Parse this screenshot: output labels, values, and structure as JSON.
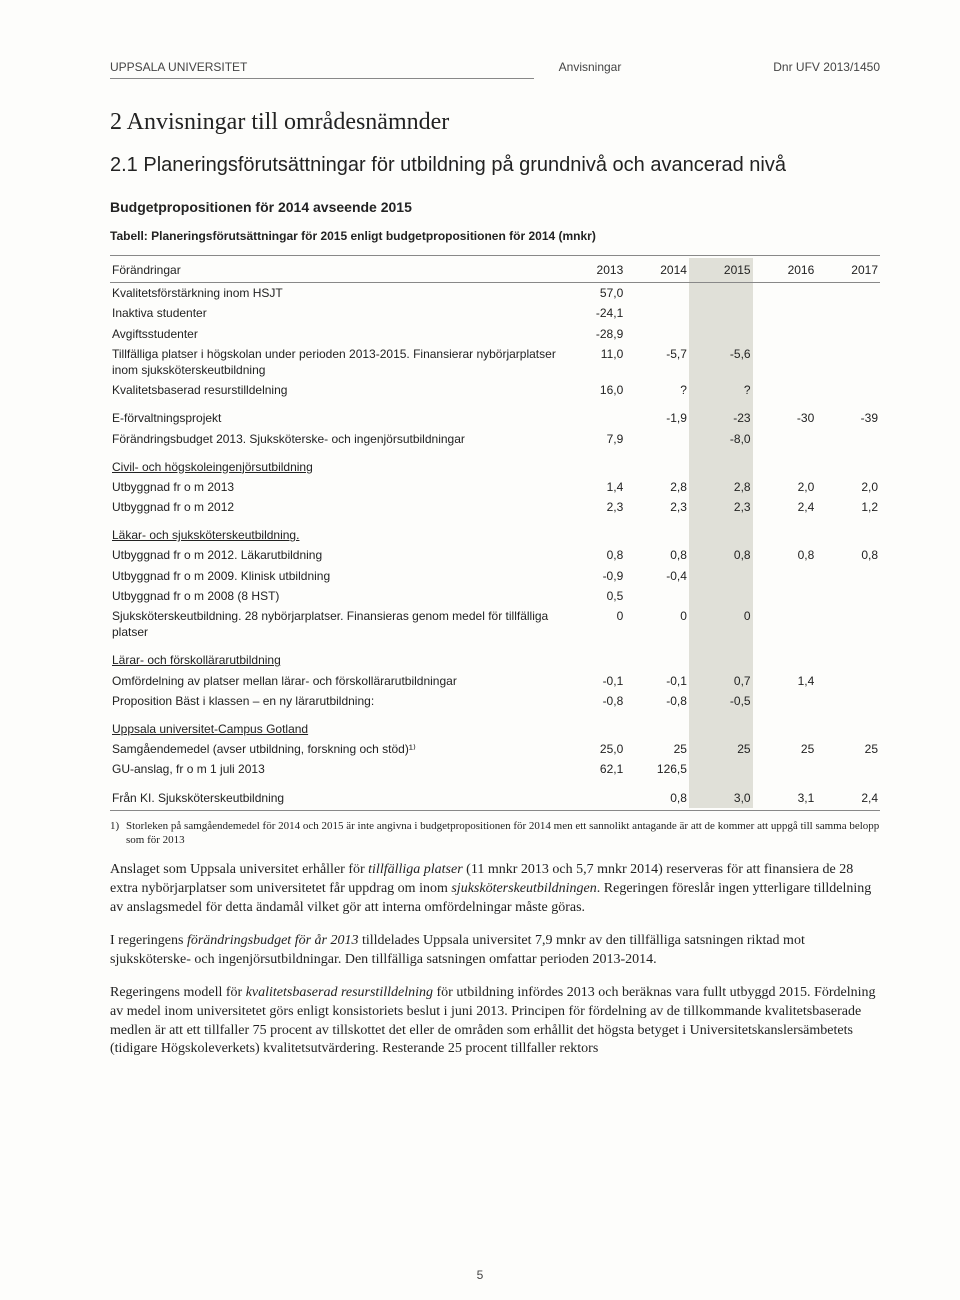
{
  "header": {
    "org": "UPPSALA UNIVERSITET",
    "mid": "Anvisningar",
    "right": "Dnr UFV 2013/1450"
  },
  "section_num_title": "2 Anvisningar till områdesnämnder",
  "sub_num_title": "2.1 Planeringsförutsättningar för utbildning på grundnivå och avancerad nivå",
  "budget_line": "Budgetpropositionen för 2014 avseende 2015",
  "table_caption": "Tabell: Planeringsförutsättningar för 2015 enligt budgetpropositionen för 2014 (mnkr)",
  "table": {
    "head_label": "Förändringar",
    "years": [
      "2013",
      "2014",
      "2015",
      "2016",
      "2017"
    ],
    "rows": [
      {
        "label": "Kvalitetsförstärkning inom HSJT",
        "v": [
          "57,0",
          "",
          "",
          "",
          ""
        ]
      },
      {
        "label": "Inaktiva studenter",
        "v": [
          "-24,1",
          "",
          "",
          "",
          ""
        ]
      },
      {
        "label": "Avgiftsstudenter",
        "v": [
          "-28,9",
          "",
          "",
          "",
          ""
        ]
      },
      {
        "label": "Tillfälliga platser i högskolan under perioden 2013-2015. Finansierar nybörjarplatser inom sjuksköterskeutbildning",
        "v": [
          "11,0",
          "-5,7",
          "-5,6",
          "",
          ""
        ]
      },
      {
        "label": "Kvalitetsbaserad resurstilldelning",
        "v": [
          "16,0",
          "?",
          "?",
          "",
          ""
        ]
      },
      {
        "spacer": true
      },
      {
        "label": "E-förvaltningsprojekt",
        "v": [
          "",
          "-1,9",
          "-23",
          "-30",
          "-39"
        ]
      },
      {
        "label": "Förändringsbudget 2013. Sjuksköterske- och ingenjörsutbildningar",
        "v": [
          "7,9",
          "",
          "-8,0",
          "",
          ""
        ]
      },
      {
        "spacer": true
      },
      {
        "label": "Civil- och högskoleingenjörsutbildning",
        "u": true,
        "v": [
          "",
          "",
          "",
          "",
          ""
        ]
      },
      {
        "label": "Utbyggnad fr o m 2013",
        "v": [
          "1,4",
          "2,8",
          "2,8",
          "2,0",
          "2,0"
        ]
      },
      {
        "label": "Utbyggnad fr o m 2012",
        "v": [
          "2,3",
          "2,3",
          "2,3",
          "2,4",
          "1,2"
        ]
      },
      {
        "spacer": true
      },
      {
        "label": "Läkar- och sjuksköterskeutbildning.",
        "u": true,
        "v": [
          "",
          "",
          "",
          "",
          ""
        ]
      },
      {
        "label": "Utbyggnad fr o m 2012. Läkarutbildning",
        "v": [
          "0,8",
          "0,8",
          "0,8",
          "0,8",
          "0,8"
        ]
      },
      {
        "label": "Utbyggnad fr o m 2009. Klinisk utbildning",
        "v": [
          "-0,9",
          "-0,4",
          "",
          "",
          ""
        ]
      },
      {
        "label": "Utbyggnad fr o m 2008 (8 HST)",
        "v": [
          "0,5",
          "",
          "",
          "",
          ""
        ]
      },
      {
        "label": "Sjuksköterskeutbildning. 28 nybörjarplatser. Finansieras genom medel för tillfälliga platser",
        "v": [
          "0",
          "0",
          "0",
          "",
          ""
        ]
      },
      {
        "spacer": true
      },
      {
        "label": "Lärar- och förskollärarutbildning",
        "u": true,
        "v": [
          "",
          "",
          "",
          "",
          ""
        ]
      },
      {
        "label": "Omfördelning av platser mellan lärar- och förskollärarutbildningar",
        "v": [
          "-0,1",
          "-0,1",
          "0,7",
          "1,4",
          ""
        ]
      },
      {
        "label": "Proposition Bäst i klassen – en ny lärarutbildning:",
        "v": [
          "-0,8",
          "-0,8",
          "-0,5",
          "",
          ""
        ]
      },
      {
        "spacer": true
      },
      {
        "label": "Uppsala universitet-Campus Gotland",
        "u": true,
        "v": [
          "",
          "",
          "",
          "",
          ""
        ]
      },
      {
        "label": "Samgåendemedel (avser utbildning, forskning och stöd)¹⁾",
        "v": [
          "25,0",
          "25",
          "25",
          "25",
          "25"
        ]
      },
      {
        "label": "GU-anslag, fr o m 1 juli 2013",
        "v": [
          "62,1",
          "126,5",
          "",
          "",
          ""
        ]
      },
      {
        "spacer": true
      },
      {
        "label": "Från KI. Sjuksköterskeutbildning",
        "v": [
          "",
          "0,8",
          "3,0",
          "3,1",
          "2,4"
        ]
      }
    ],
    "highlight_col": 2,
    "colors": {
      "highlight_bg": "#e0e0d8",
      "rule": "#888888",
      "text": "#222222",
      "page_bg": "#fdfdfb"
    },
    "font_sizes": {
      "body": 14,
      "table": 12,
      "footnote": 11,
      "h2": 24,
      "h3": 20
    }
  },
  "footnote_num": "1)",
  "footnote_text": "Storleken på samgåendemedel för 2014 och 2015 är inte angivna i budgetpropositionen för 2014 men ett sannolikt antagande är att de kommer att uppgå till samma belopp som för 2013",
  "para1_a": "Anslaget som Uppsala universitet erhåller för ",
  "para1_em1": "tillfälliga platser",
  "para1_b": " (11 mnkr 2013 och 5,7 mnkr 2014) reserveras för att finansiera de 28 extra nybörjarplatser som universitetet får uppdrag om inom ",
  "para1_em2": "sjuksköterskeutbildningen",
  "para1_c": ". Regeringen föreslår ingen ytterligare tilldelning av anslagsmedel för detta ändamål vilket gör att interna omfördelningar måste göras.",
  "para2_a": "I regeringens ",
  "para2_em": "förändringsbudget för år 2013",
  "para2_b": " tilldelades Uppsala universitet 7,9 mnkr av den tillfälliga satsningen riktad mot sjuksköterske- och ingenjörsutbildningar. Den tillfälliga satsningen omfattar perioden 2013-2014.",
  "para3_a": "Regeringens modell för ",
  "para3_em": "kvalitetsbaserad resurstilldelning",
  "para3_b": " för utbildning infördes 2013 och beräknas vara fullt utbyggd 2015. Fördelning av medel inom universitetet görs enligt konsistoriets beslut i juni 2013. Principen för fördelning av de tillkommande kvalitetsbaserade medlen är att ett tillfaller 75 procent av tillskottet det eller de områden som erhållit det högsta betyget i Universitetskanslersämbetets (tidigare Högskoleverkets) kvalitetsutvärdering. Resterande 25 procent tillfaller rektors",
  "page_number": "5"
}
